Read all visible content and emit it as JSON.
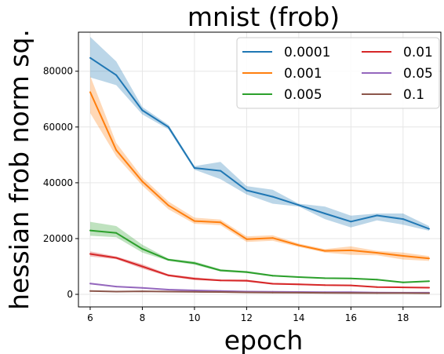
{
  "chart_data": {
    "type": "line",
    "title": "mnist (frob)",
    "xlabel": "epoch",
    "ylabel": "hessian frob norm sq.",
    "xlim": [
      5.55,
      19.45
    ],
    "ylim": [
      -4500,
      94000
    ],
    "xticks": [
      6,
      8,
      10,
      12,
      14,
      16,
      18
    ],
    "yticks": [
      0,
      20000,
      40000,
      60000,
      80000
    ],
    "grid": true,
    "legend": {
      "placement": "top-right",
      "columns": 2
    },
    "x": [
      6,
      7,
      8,
      9,
      10,
      11,
      12,
      13,
      14,
      15,
      16,
      17,
      18,
      19
    ],
    "series": [
      {
        "name": "0.0001",
        "color": "#1f77b4",
        "values": [
          84800,
          78600,
          66000,
          60000,
          45300,
          44300,
          37300,
          35000,
          32000,
          29000,
          26100,
          28300,
          27000,
          23500
        ],
        "lower": [
          77800,
          75000,
          64500,
          59200,
          44700,
          41300,
          35800,
          32500,
          31500,
          27000,
          24000,
          26500,
          25000,
          22800
        ],
        "upper": [
          92300,
          83500,
          67200,
          60800,
          46000,
          47500,
          38800,
          37500,
          32500,
          31500,
          28200,
          29000,
          29000,
          24500
        ]
      },
      {
        "name": "0.001",
        "color": "#ff7f0e",
        "values": [
          72500,
          51700,
          40500,
          31900,
          26300,
          25800,
          19800,
          20200,
          17600,
          15600,
          15800,
          14900,
          13800,
          12900
        ],
        "lower": [
          65000,
          49500,
          39000,
          30500,
          25300,
          24800,
          18800,
          19200,
          17000,
          15000,
          14200,
          14000,
          12500,
          12000
        ],
        "upper": [
          78300,
          54300,
          42000,
          33300,
          27500,
          26800,
          20800,
          21200,
          18200,
          16200,
          17200,
          15600,
          15000,
          13700
        ]
      },
      {
        "name": "0.005",
        "color": "#2ca02c",
        "values": [
          22900,
          22000,
          16300,
          12400,
          11200,
          8600,
          8000,
          6700,
          6200,
          5800,
          5700,
          5300,
          4300,
          4700
        ],
        "lower": [
          21000,
          20500,
          15000,
          12000,
          10600,
          8200,
          7600,
          6400,
          6000,
          5600,
          5500,
          5100,
          4100,
          4500
        ],
        "upper": [
          26000,
          24500,
          17800,
          12800,
          11800,
          9000,
          8400,
          7000,
          6400,
          6000,
          5900,
          5500,
          4500,
          4900
        ]
      },
      {
        "name": "0.01",
        "color": "#d62728",
        "values": [
          14500,
          13100,
          10000,
          6800,
          5600,
          5000,
          4900,
          3800,
          3600,
          3300,
          3200,
          2600,
          2500,
          2400
        ],
        "lower": [
          13600,
          12600,
          9200,
          6400,
          5100,
          4700,
          4500,
          3500,
          3300,
          3100,
          3000,
          2400,
          2300,
          2200
        ],
        "upper": [
          15400,
          13600,
          10800,
          7200,
          6100,
          5300,
          5300,
          4100,
          3900,
          3500,
          3400,
          2800,
          2700,
          2600
        ]
      },
      {
        "name": "0.05",
        "color": "#9467bd",
        "values": [
          3900,
          2800,
          2300,
          1700,
          1400,
          1200,
          1000,
          900,
          850,
          800,
          750,
          650,
          600,
          600
        ],
        "lower": [
          3600,
          2600,
          2100,
          1500,
          1200,
          1000,
          800,
          750,
          700,
          650,
          600,
          500,
          450,
          450
        ],
        "upper": [
          4200,
          3000,
          2500,
          1900,
          1600,
          1400,
          1200,
          1050,
          1000,
          950,
          900,
          800,
          750,
          750
        ]
      },
      {
        "name": "0.1",
        "color": "#8c564b",
        "values": [
          1200,
          1000,
          1100,
          1000,
          900,
          850,
          700,
          650,
          600,
          550,
          500,
          450,
          450,
          400
        ],
        "lower": [
          1000,
          850,
          950,
          850,
          750,
          700,
          550,
          500,
          450,
          400,
          350,
          300,
          300,
          250
        ],
        "upper": [
          1400,
          1150,
          1250,
          1150,
          1050,
          1000,
          850,
          800,
          750,
          700,
          650,
          600,
          600,
          550
        ]
      }
    ]
  }
}
